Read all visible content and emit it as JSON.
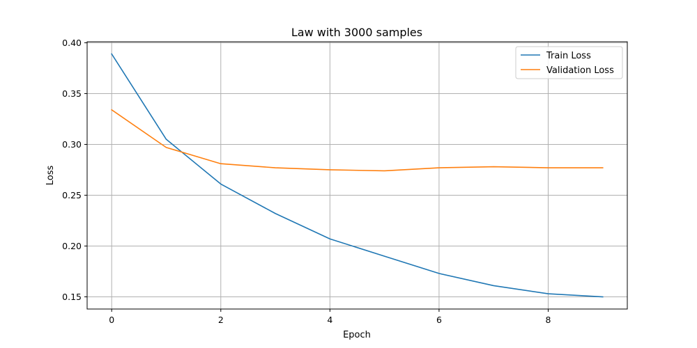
{
  "chart_data": {
    "type": "line",
    "title": "Law with 3000 samples",
    "xlabel": "Epoch",
    "ylabel": "Loss",
    "x": [
      0,
      1,
      2,
      3,
      4,
      5,
      6,
      7,
      8,
      9
    ],
    "xlim": [
      -0.45,
      9.45
    ],
    "ylim": [
      0.138,
      0.401
    ],
    "xticks": [
      0,
      2,
      4,
      6,
      8
    ],
    "yticks": [
      0.15,
      0.2,
      0.25,
      0.3,
      0.35,
      0.4
    ],
    "xtick_labels": [
      "0",
      "2",
      "4",
      "6",
      "8"
    ],
    "ytick_labels": [
      "0.15",
      "0.20",
      "0.25",
      "0.30",
      "0.35",
      "0.40"
    ],
    "grid": true,
    "legend_position": "upper right",
    "series": [
      {
        "name": "Train Loss",
        "color": "#1f77b4",
        "values": [
          0.389,
          0.305,
          0.261,
          0.232,
          0.207,
          0.19,
          0.173,
          0.161,
          0.153,
          0.15
        ]
      },
      {
        "name": "Validation Loss",
        "color": "#ff7f0e",
        "values": [
          0.334,
          0.297,
          0.281,
          0.277,
          0.275,
          0.274,
          0.277,
          0.278,
          0.277,
          0.277
        ]
      }
    ]
  }
}
